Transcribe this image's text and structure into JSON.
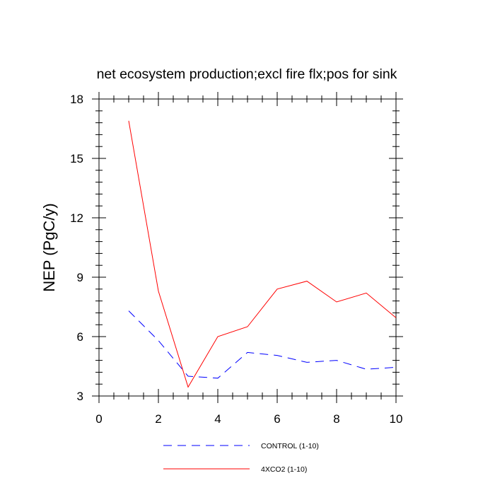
{
  "chart_data": {
    "type": "line",
    "title": "net ecosystem production;excl fire flx;pos for sink",
    "xlabel": "",
    "ylabel": "NEP  (PgC/y)",
    "xlim": [
      0,
      10
    ],
    "ylim": [
      3,
      18
    ],
    "x_ticks": [
      0,
      2,
      4,
      6,
      8,
      10
    ],
    "y_ticks": [
      3,
      6,
      9,
      12,
      15,
      18
    ],
    "x_tick_labels": [
      "0",
      "2",
      "4",
      "6",
      "8",
      "10"
    ],
    "y_tick_labels": [
      "3",
      "6",
      "9",
      "12",
      "15",
      "18"
    ],
    "grid": false,
    "legend_position": "bottom",
    "series": [
      {
        "name": "CONTROL (1-10)",
        "color": "#0000ff",
        "dash": true,
        "x": [
          1,
          2,
          3,
          4,
          5,
          6,
          7,
          8,
          9,
          10
        ],
        "values": [
          7.3,
          5.8,
          4.0,
          3.9,
          5.2,
          5.05,
          4.7,
          4.8,
          4.35,
          4.45
        ]
      },
      {
        "name": "4XCO2 (1-10)",
        "color": "#ff0000",
        "dash": false,
        "x": [
          1,
          2,
          3,
          4,
          5,
          6,
          7,
          8,
          9,
          10
        ],
        "values": [
          16.9,
          8.3,
          3.45,
          6.0,
          6.5,
          8.4,
          8.8,
          7.75,
          8.2,
          6.95
        ]
      }
    ]
  }
}
